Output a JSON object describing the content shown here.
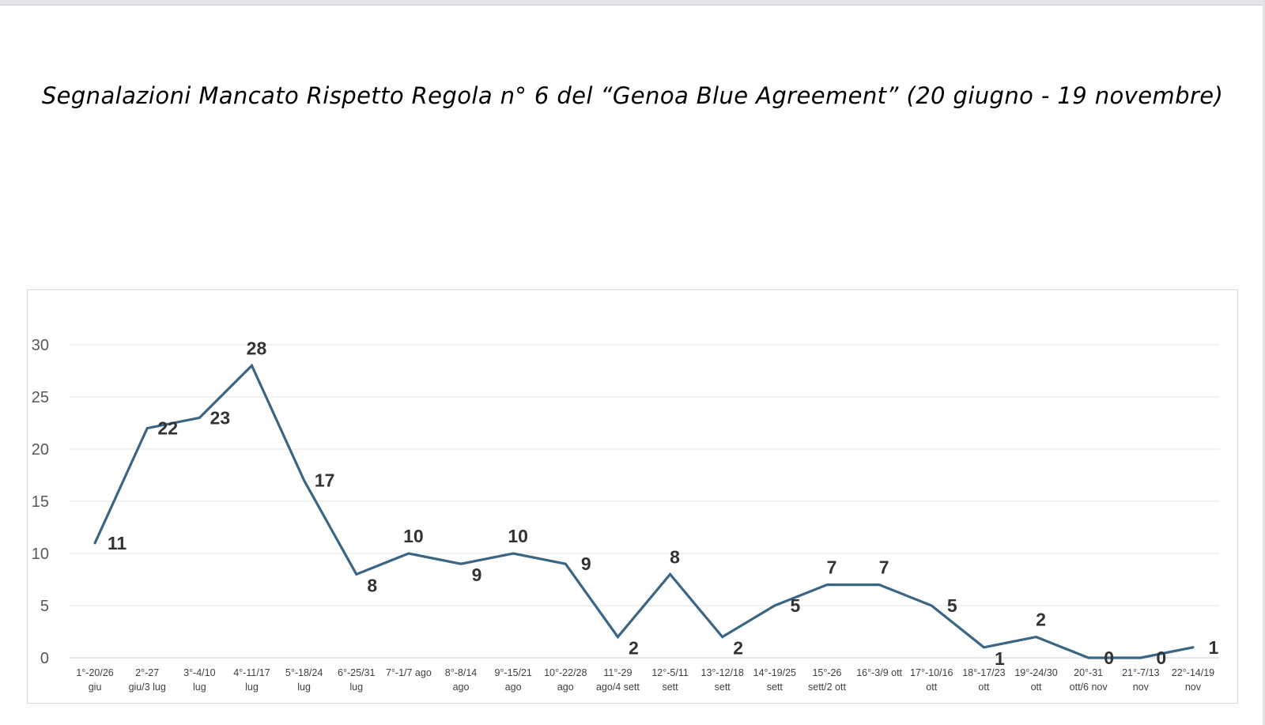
{
  "chart_data": {
    "type": "line",
    "title": "Segnalazioni Mancato Rispetto Regola n° 6 del “Genoa Blue Agreement” (20 giugno - 19 novembre)",
    "xlabel": "",
    "ylabel": "",
    "ylim": [
      0,
      30
    ],
    "yticks": [
      "0",
      "5",
      "10",
      "15",
      "20",
      "25",
      "30"
    ],
    "grid": true,
    "legend": "none",
    "line_color": "#3b6585",
    "categories": [
      [
        "1°-20/26",
        "giu"
      ],
      [
        "2°-27",
        "giu/3 lug"
      ],
      [
        "3°-4/10",
        "lug"
      ],
      [
        "4°-11/17",
        "lug"
      ],
      [
        "5°-18/24",
        "lug"
      ],
      [
        "6°-25/31",
        "lug"
      ],
      [
        "7°-1/7 ago",
        ""
      ],
      [
        "8°-8/14",
        "ago"
      ],
      [
        "9°-15/21",
        "ago"
      ],
      [
        "10°-22/28",
        "ago"
      ],
      [
        "11°-29",
        "ago/4 sett"
      ],
      [
        "12°-5/11",
        "sett"
      ],
      [
        "13°-12/18",
        "sett"
      ],
      [
        "14°-19/25",
        "sett"
      ],
      [
        "15°-26",
        "sett/2 ott"
      ],
      [
        "16°-3/9 ott",
        ""
      ],
      [
        "17°-10/16",
        "ott"
      ],
      [
        "18°-17/23",
        "ott"
      ],
      [
        "19°-24/30",
        "ott"
      ],
      [
        "20°-31",
        "ott/6 nov"
      ],
      [
        "21°-7/13",
        "nov"
      ],
      [
        "22°-14/19",
        "nov"
      ]
    ],
    "values": [
      11,
      22,
      23,
      28,
      17,
      8,
      10,
      9,
      10,
      9,
      2,
      8,
      2,
      5,
      7,
      7,
      5,
      1,
      2,
      0,
      0,
      1
    ]
  }
}
